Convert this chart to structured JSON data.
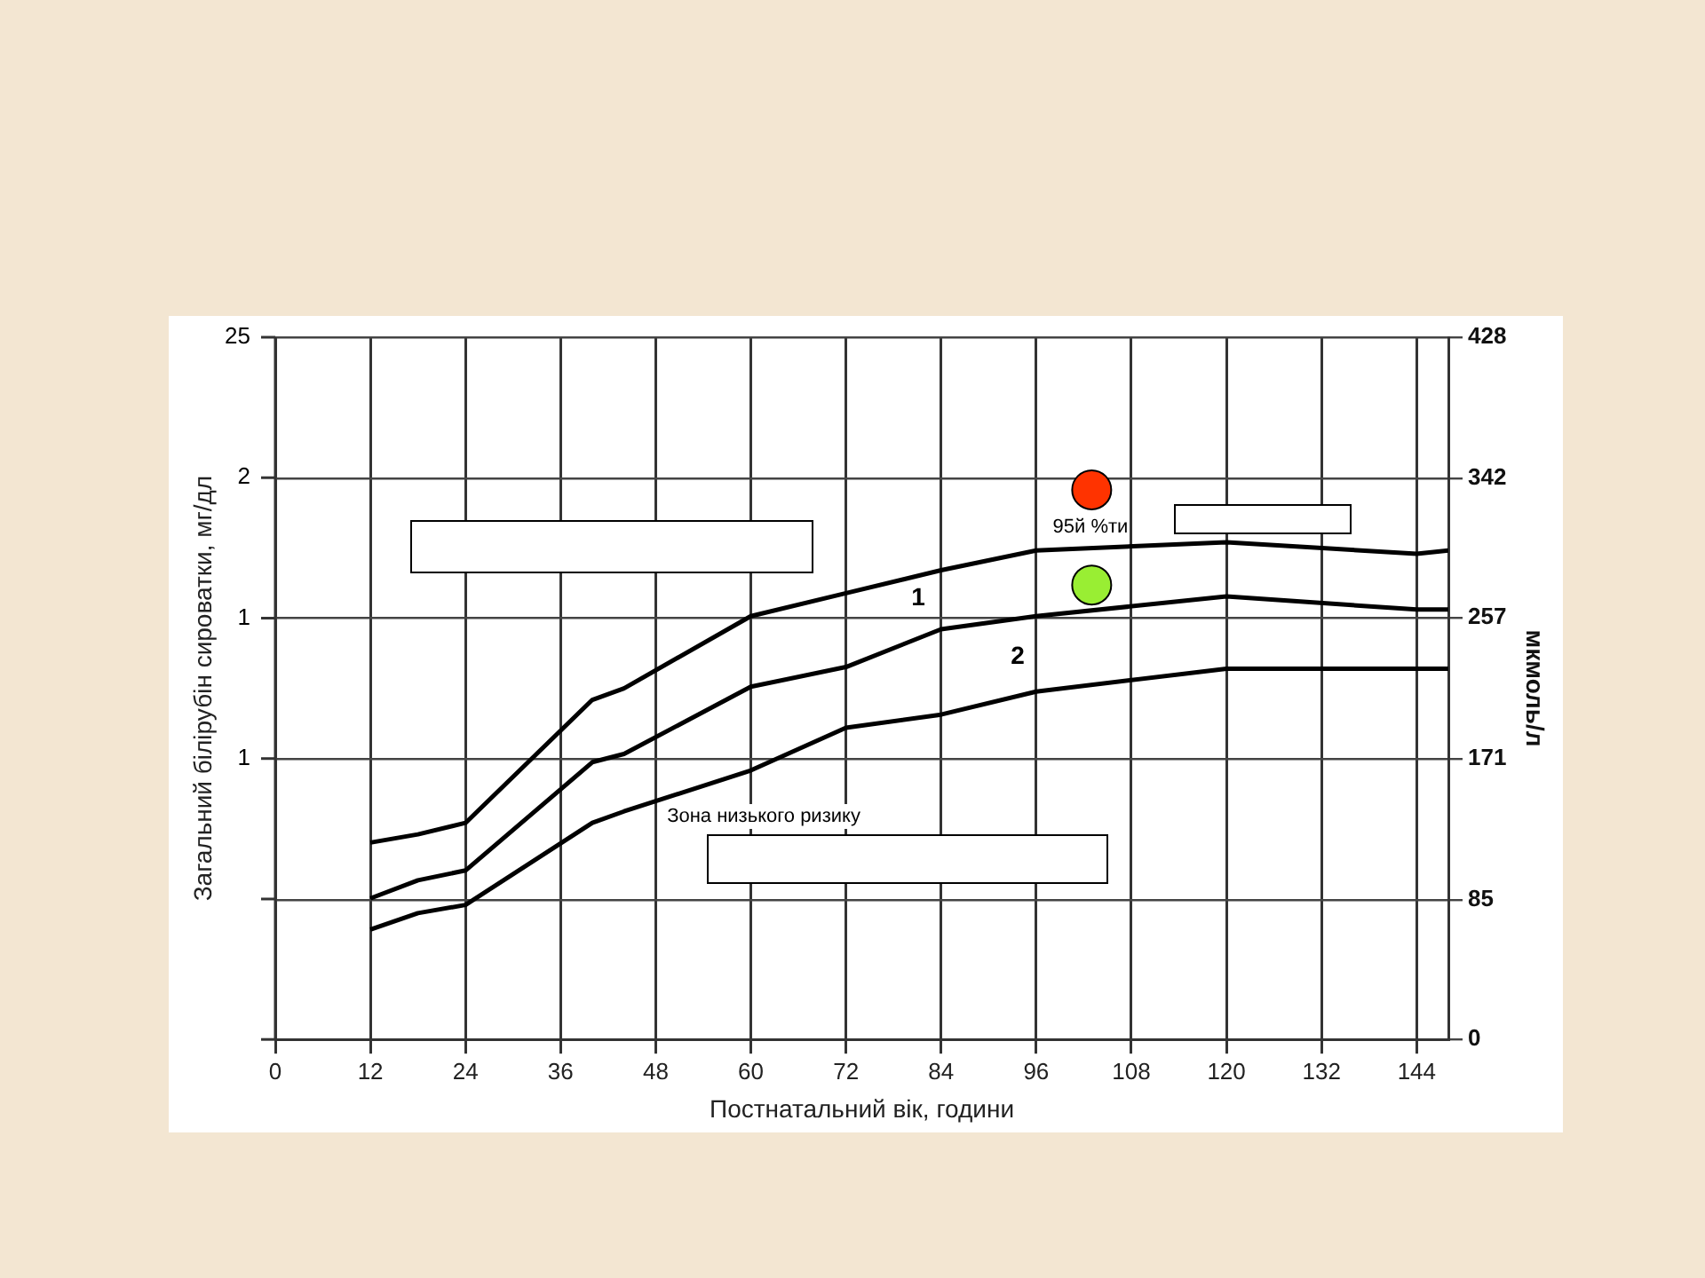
{
  "chart_data": {
    "type": "line",
    "xlabel": "Постнатальний вік, години",
    "ylabel": "мкмоль/л",
    "x": [
      12,
      18,
      24,
      40,
      44,
      60,
      72,
      84,
      96,
      120,
      144,
      148
    ],
    "series": [
      {
        "color": "#000000",
        "values": [
          120,
          125,
          132,
          207,
          214,
          258,
          272,
          286,
          298,
          303,
          296,
          298
        ]
      },
      {
        "color": "#000000",
        "values": [
          86,
          97,
          103,
          169,
          174,
          215,
          227,
          250,
          258,
          270,
          262,
          262
        ]
      },
      {
        "color": "#000000",
        "values": [
          67,
          77,
          82,
          132,
          139,
          164,
          190,
          198,
          212,
          226,
          226,
          226
        ]
      },
      {
        "type": "scatter",
        "marker": "circle",
        "x": [
          103,
          103
        ],
        "values": [
          335,
          277
        ],
        "colors": [
          "#ff3300",
          "#99ee33"
        ]
      }
    ],
    "xlim": [
      0,
      148
    ],
    "xticks": [
      0,
      12,
      24,
      36,
      48,
      60,
      72,
      84,
      96,
      108,
      120,
      132,
      144
    ],
    "ylim": [
      0,
      428
    ],
    "yticks": [
      0,
      85,
      171,
      257,
      342,
      428
    ],
    "grid": true,
    "legend": false,
    "marker": "none",
    "line_style": "solid",
    "annotations": [
      "1",
      "2",
      "95й %ти",
      "Зона низького ризику",
      "25",
      "2",
      "1",
      "1",
      "Загальний білірубін сироватки, мг/дл"
    ]
  }
}
